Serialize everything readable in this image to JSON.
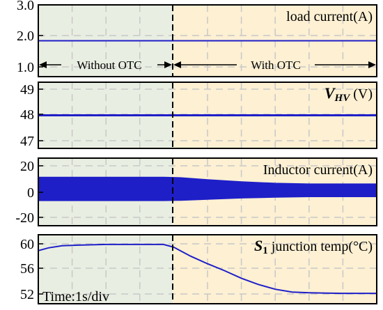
{
  "colors": {
    "without_bg": "#e9eee2",
    "with_bg": "#fdf0d3",
    "trace": "#1f1fc8",
    "grid": "#c8c8c8",
    "axis": "#000000"
  },
  "segments": {
    "without_label": "Without OTC",
    "with_label": "With OTC"
  },
  "time_label": "Time:1s/div",
  "chart_data": [
    {
      "type": "line",
      "id": "load-current",
      "title": "load current(A)",
      "yticks": [
        "3.0",
        "2.0",
        "1.0"
      ],
      "ylim": [
        1.0,
        3.0
      ],
      "series": [
        {
          "x": [
            0,
            10
          ],
          "y": [
            2.0,
            2.0
          ]
        }
      ]
    },
    {
      "type": "line",
      "id": "vhv",
      "title_main": "V",
      "title_sub": "HV",
      "title_unit": " (V)",
      "yticks": [
        "49",
        "48",
        "47"
      ],
      "ylim": [
        46.8,
        49.2
      ],
      "series": [
        {
          "x": [
            0,
            10
          ],
          "y": [
            48.0,
            48.0
          ]
        }
      ]
    },
    {
      "type": "area",
      "id": "inductor-current",
      "title": "Inductor current(A)",
      "yticks": [
        "20",
        "0",
        "-20"
      ],
      "ylim": [
        -25,
        25
      ],
      "envelope": {
        "x": [
          0,
          3.7,
          4.2,
          5.0,
          6.0,
          7.0,
          8.0,
          10
        ],
        "upper": [
          11,
          11,
          10.6,
          9.2,
          7.6,
          6.5,
          6.0,
          6.0
        ],
        "lower": [
          -6.5,
          -6.5,
          -6.3,
          -5.5,
          -4.6,
          -4.0,
          -3.6,
          -3.6
        ]
      }
    },
    {
      "type": "line",
      "id": "junction-temp",
      "title_main": "S",
      "title_sub": "1",
      "title_unit": " junction temp(°C)",
      "yticks": [
        "60",
        "56",
        "52"
      ],
      "ylim": [
        51.5,
        61.5
      ],
      "series": [
        {
          "x": [
            0,
            0.3,
            0.7,
            1.2,
            2.0,
            3.0,
            3.7,
            4.0,
            4.5,
            5.0,
            5.5,
            6.0,
            6.5,
            7.0,
            7.5,
            8.0,
            8.5,
            9.0,
            10
          ],
          "y": [
            59.2,
            59.6,
            59.9,
            60.0,
            60.1,
            60.1,
            60.1,
            59.7,
            58.4,
            57.3,
            56.3,
            55.2,
            54.3,
            53.6,
            53.2,
            53.1,
            53.05,
            53.0,
            53.0
          ]
        }
      ]
    }
  ]
}
